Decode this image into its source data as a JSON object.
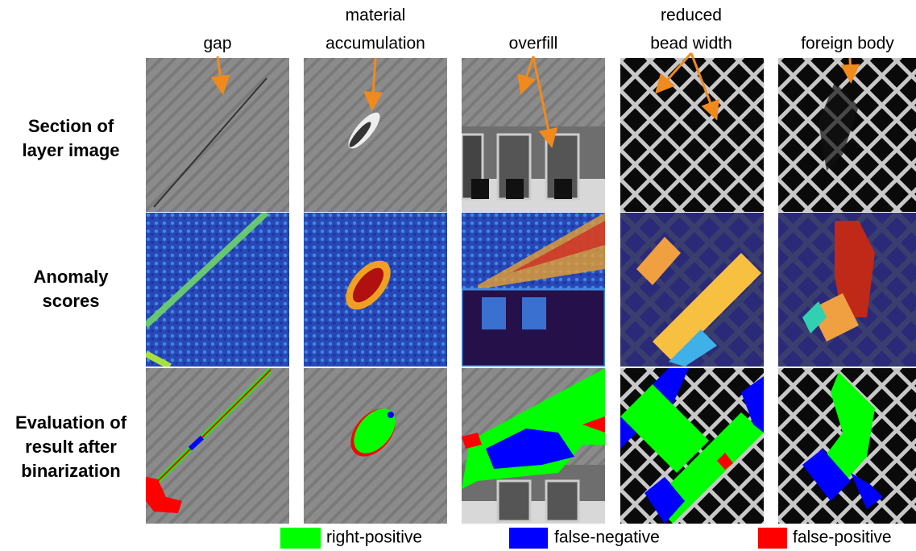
{
  "columns": [
    {
      "lines": [
        "gap"
      ]
    },
    {
      "lines": [
        "material",
        "accumulation"
      ]
    },
    {
      "lines": [
        "overfill"
      ]
    },
    {
      "lines": [
        "reduced",
        "bead width"
      ]
    },
    {
      "lines": [
        "foreign body"
      ]
    }
  ],
  "rows": [
    {
      "lines": [
        "Section of",
        "layer image"
      ]
    },
    {
      "lines": [
        "Anomaly",
        "scores"
      ]
    },
    {
      "lines": [
        "Evaluation of",
        "result after",
        "binarization"
      ]
    }
  ],
  "legend": [
    {
      "label": "right-positive",
      "color": "#00ff00"
    },
    {
      "label": "false-negative",
      "color": "#0000ff"
    },
    {
      "label": "false-positive",
      "color": "#ff0000"
    }
  ]
}
